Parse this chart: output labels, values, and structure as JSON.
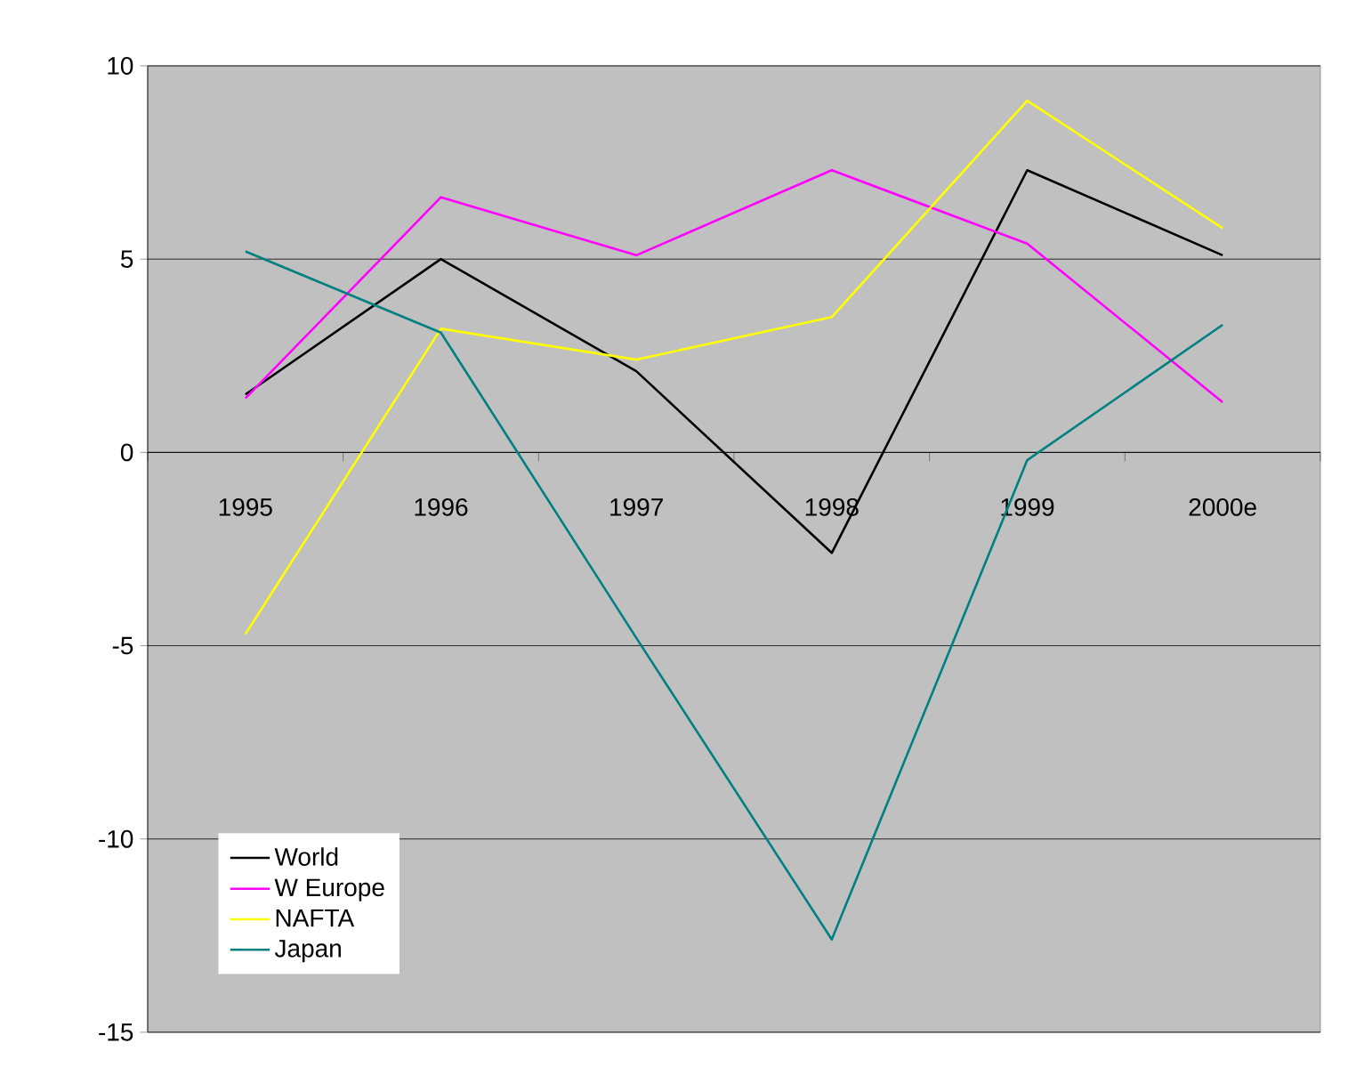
{
  "chart_data": {
    "type": "line",
    "categories": [
      "1995",
      "1996",
      "1997",
      "1998",
      "1999",
      "2000e"
    ],
    "series": [
      {
        "name": "World",
        "color": "#000000",
        "values": [
          1.5,
          5.0,
          2.1,
          -2.6,
          7.3,
          5.1
        ]
      },
      {
        "name": "W Europe",
        "color": "#ff00ff",
        "values": [
          1.4,
          6.6,
          5.1,
          7.3,
          5.4,
          1.3
        ]
      },
      {
        "name": "NAFTA",
        "color": "#ffff00",
        "values": [
          -4.7,
          3.2,
          2.4,
          3.5,
          9.1,
          5.8
        ]
      },
      {
        "name": "Japan",
        "color": "#008080",
        "values": [
          5.2,
          3.1,
          -4.8,
          -12.6,
          -0.2,
          3.3
        ]
      }
    ],
    "ylim": [
      -15,
      10
    ],
    "yticks": [
      -15,
      -10,
      -5,
      0,
      5,
      10
    ],
    "grid": "y",
    "legend": "bottom left",
    "marker": "none"
  }
}
